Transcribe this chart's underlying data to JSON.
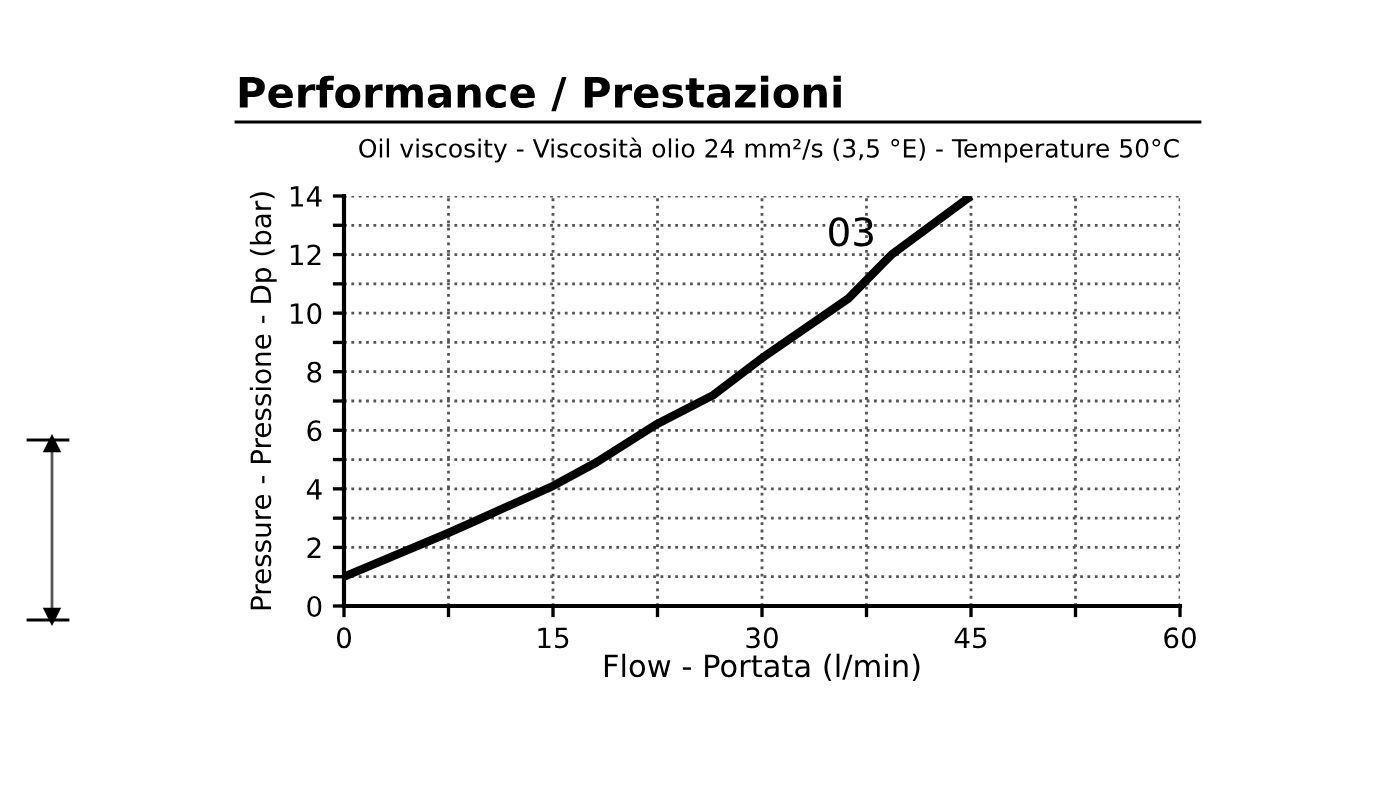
{
  "chart_data": {
    "type": "line",
    "title": "Performance / Prestazioni",
    "subtitle": "Oil viscosity - Viscosità olio 24 mm²/s (3,5 °E) - Temperature 50°C",
    "xlabel": "Flow - Portata (l/min)",
    "ylabel": "Pressure - Pressione - Dp (bar)",
    "series": [
      {
        "name": "03",
        "color": "#000000",
        "x": [
          0,
          7.5,
          9.4,
          15,
          18.1,
          22.4,
          26.5,
          30.1,
          36.2,
          39.3,
          45
        ],
        "values": [
          1.0,
          2.5,
          2.9,
          4.1,
          4.9,
          6.2,
          7.2,
          8.5,
          10.5,
          12.0,
          14.0
        ]
      }
    ],
    "xlim": [
      0,
      60
    ],
    "ylim": [
      0,
      14
    ],
    "xticks": [
      0,
      {
        "value": 7.5,
        "label": null
      },
      15,
      {
        "value": 22.5,
        "label": null
      },
      30,
      {
        "value": 37.5,
        "label": null
      },
      45,
      {
        "value": 52.5,
        "label": null
      },
      60
    ],
    "yticks": [
      0,
      {
        "value": 1,
        "label": null
      },
      2,
      {
        "value": 3,
        "label": null
      },
      4,
      {
        "value": 5,
        "label": null
      },
      6,
      {
        "value": 7,
        "label": null
      },
      8,
      {
        "value": 9,
        "label": null
      },
      10,
      {
        "value": 11,
        "label": null
      },
      12,
      {
        "value": 13,
        "label": null
      },
      14
    ],
    "grid": true,
    "legend": false,
    "line_style": "solid",
    "marker": "none"
  }
}
